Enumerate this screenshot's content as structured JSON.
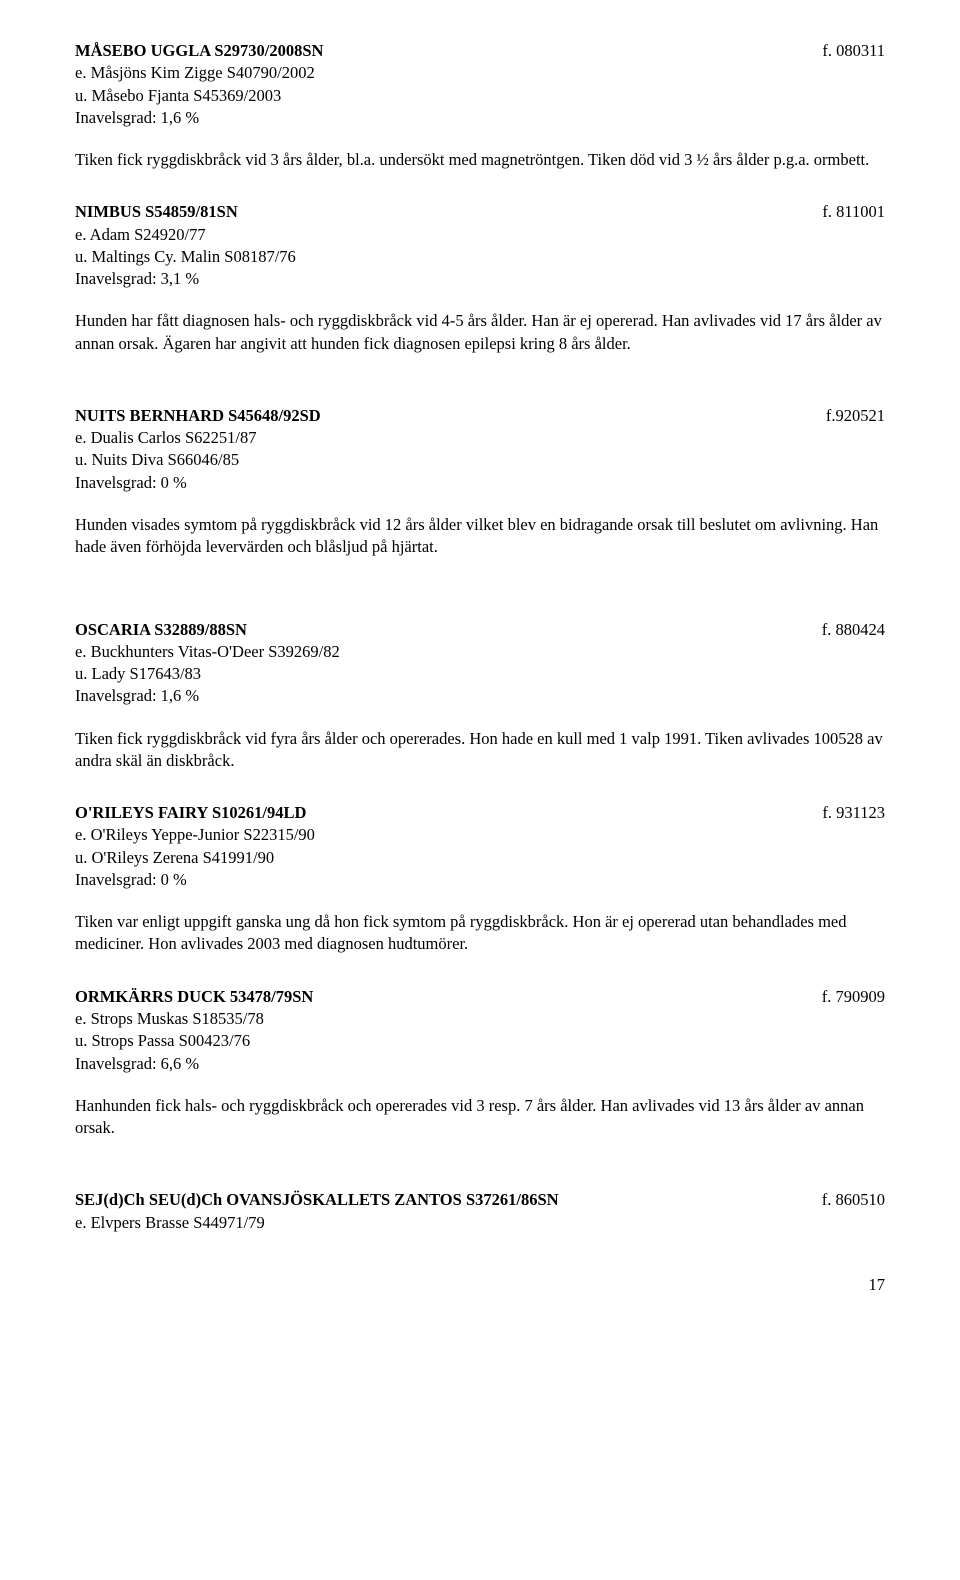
{
  "entries": [
    {
      "title": "MÅSEBO UGGLA S29730/2008SN",
      "date": "f. 080311",
      "sire": "e. Måsjöns Kim Zigge S40790/2002",
      "dam": "u. Måsebo Fjanta S45369/2003",
      "inavelsgrad": "Inavelsgrad: 1,6 %",
      "desc": "Tiken fick ryggdiskbråck vid 3 års ålder, bl.a. undersökt med magnetröntgen. Tiken död vid 3 ½ års ålder p.g.a. ormbett."
    },
    {
      "title": "NIMBUS S54859/81SN",
      "date": "f. 811001",
      "sire": "e. Adam S24920/77",
      "dam": "u. Maltings Cy. Malin S08187/76",
      "inavelsgrad": "Inavelsgrad: 3,1 %",
      "desc": "Hunden har fått diagnosen hals- och ryggdiskbråck vid 4-5 års ålder. Han är ej opererad. Han avlivades vid 17 års ålder av annan orsak. Ägaren har angivit att hunden fick diagnosen epilepsi kring 8 års ålder."
    },
    {
      "title": "NUITS BERNHARD  S45648/92SD",
      "date": "f.920521",
      "sire": "e. Dualis Carlos S62251/87",
      "dam": "u. Nuits Diva S66046/85",
      "inavelsgrad": "Inavelsgrad: 0 %",
      "desc": "Hunden visades symtom på ryggdiskbråck vid 12 års ålder vilket blev en bidragande orsak till beslutet om avlivning. Han hade även förhöjda levervärden och blåsljud på hjärtat."
    },
    {
      "title": "OSCARIA S32889/88SN",
      "date": "f. 880424",
      "sire": "e. Buckhunters Vitas-O'Deer S39269/82",
      "dam": "u. Lady S17643/83",
      "inavelsgrad": "Inavelsgrad: 1,6 %",
      "desc": "Tiken fick ryggdiskbråck vid fyra års ålder och opererades. Hon hade en kull med 1 valp 1991. Tiken avlivades 100528 av andra skäl än diskbråck."
    },
    {
      "title": "O'RILEYS FAIRY  S10261/94LD",
      "date": "f. 931123",
      "sire": "e. O'Rileys Yeppe-Junior S22315/90",
      "dam": "u. O'Rileys Zerena S41991/90",
      "inavelsgrad": "Inavelsgrad: 0 %",
      "desc": "Tiken var enligt uppgift ganska ung då hon fick symtom på ryggdiskbråck. Hon är ej opererad utan behandlades med mediciner. Hon avlivades 2003 med diagnosen hudtumörer."
    },
    {
      "title": "ORMKÄRRS DUCK 53478/79SN",
      "date": "f. 790909",
      "sire": "e. Strops Muskas S18535/78",
      "dam": "u. Strops Passa S00423/76",
      "inavelsgrad": "Inavelsgrad: 6,6 %",
      "desc": "Hanhunden fick hals- och ryggdiskbråck och opererades vid 3 resp. 7 års ålder. Han avlivades vid 13 års ålder av annan orsak."
    },
    {
      "title": "SEJ(d)Ch SEU(d)Ch OVANSJÖSKALLETS  ZANTOS S37261/86SN",
      "date": "f. 860510",
      "sire": "e. Elvpers Brasse S44971/79",
      "dam": "",
      "inavelsgrad": "",
      "desc": ""
    }
  ],
  "spacing": [
    30,
    50,
    60,
    30,
    30,
    50,
    0
  ],
  "page_number": "17"
}
